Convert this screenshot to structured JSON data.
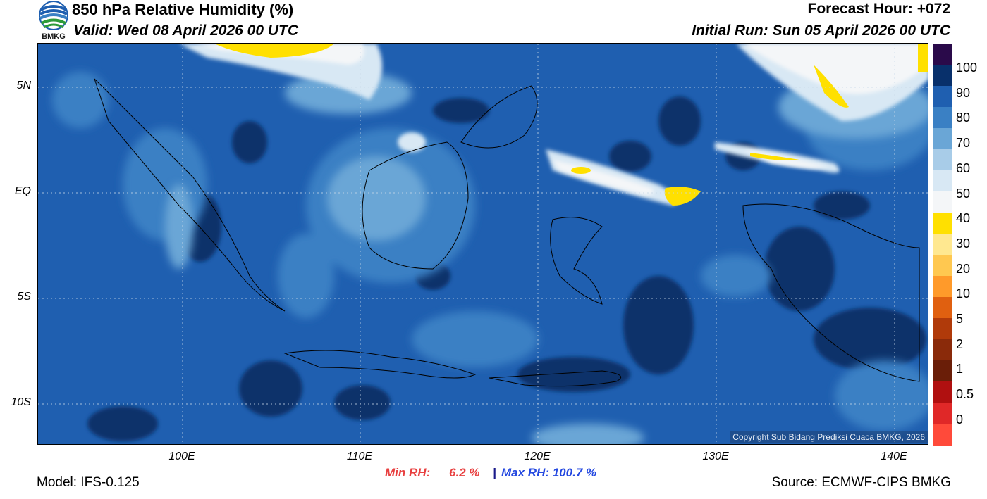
{
  "header": {
    "title": "850 hPa Relative Humidity (%)",
    "valid": "Valid: Wed 08 April 2026 00 UTC",
    "forecast_hour": "Forecast Hour: +072",
    "initial_run": "Initial Run: Sun 05 April 2026 00 UTC",
    "logo_text": "BMKG"
  },
  "map": {
    "lat_labels": [
      "5N",
      "EQ",
      "5S",
      "10S"
    ],
    "lon_labels": [
      "100E",
      "110E",
      "120E",
      "130E",
      "140E"
    ],
    "copyright": "Copyright Sub Bidang Prediksi Cuaca BMKG, 2026"
  },
  "colorbar": {
    "labels": [
      "100",
      "90",
      "80",
      "70",
      "60",
      "50",
      "40",
      "30",
      "20",
      "10",
      "5",
      "2",
      "1",
      "0.5",
      "0"
    ],
    "colors": [
      "#2a0a4a",
      "#08306b",
      "#1f5fb0",
      "#3a80c4",
      "#6aa6d6",
      "#a8cce8",
      "#d8e8f4",
      "#f4f6f8",
      "#ffe000",
      "#ffe890",
      "#ffc850",
      "#ff9a2a",
      "#e06010",
      "#b03a0a",
      "#8a2a0a",
      "#6a1e08",
      "#b01010",
      "#e02828",
      "#ff4a3a"
    ]
  },
  "stats": {
    "min_label": "Min RH:",
    "min_value": "6.2 %",
    "sep": "|",
    "max_label": "Max RH: 100.7 %"
  },
  "footer": {
    "model": "Model: IFS-0.125",
    "source": "Source: ECMWF-CIPS BMKG"
  }
}
